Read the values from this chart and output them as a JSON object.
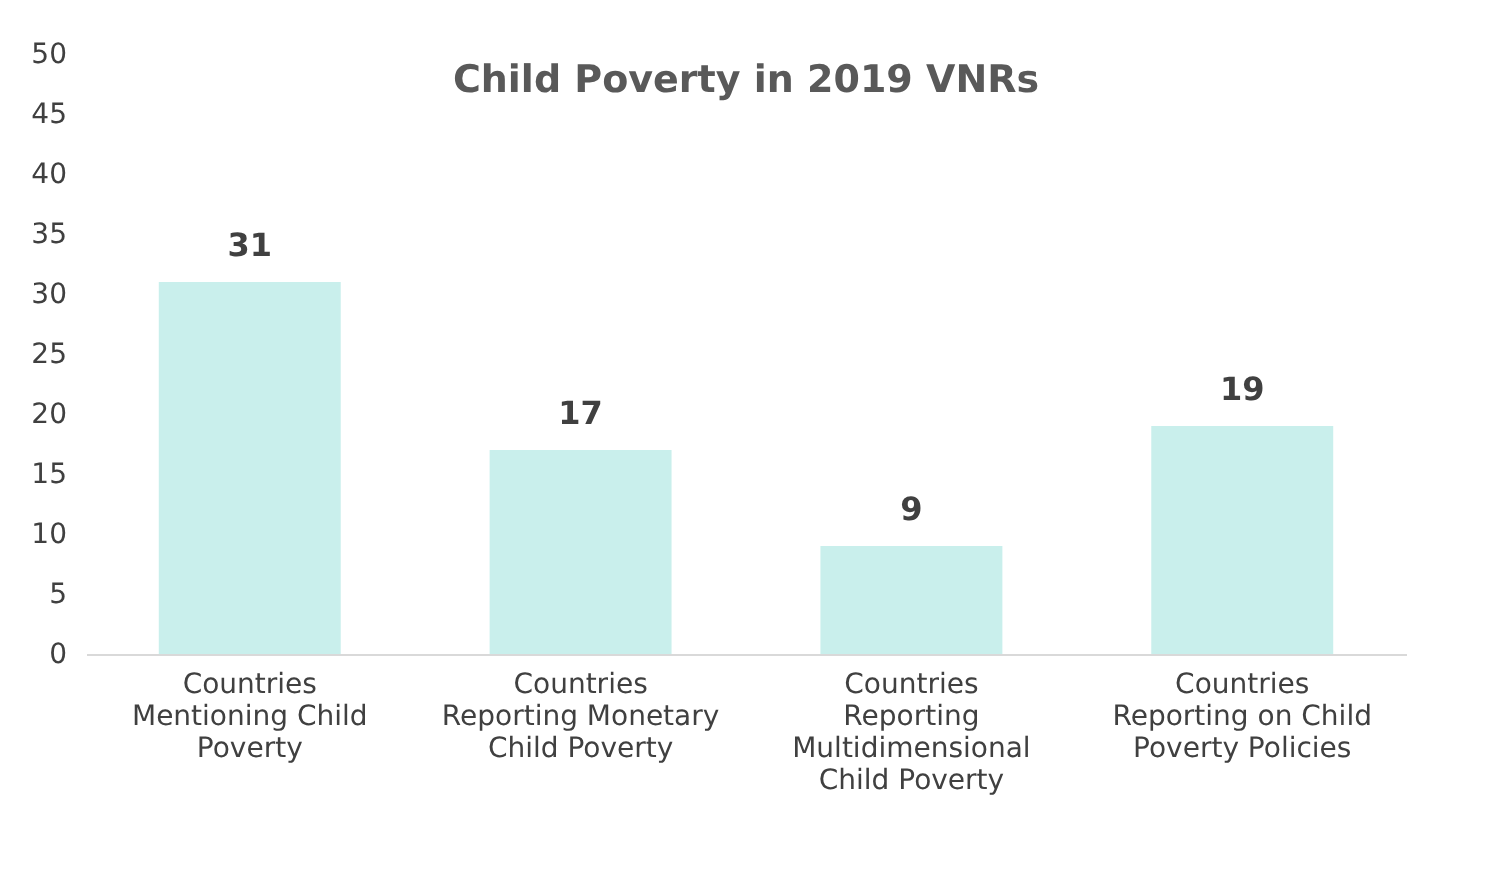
{
  "chart_data": {
    "type": "bar",
    "title": "Child Poverty in 2019 VNRs",
    "categories": [
      "Countries Mentioning Child Poverty",
      "Countries Reporting Monetary Child Poverty",
      "Countries Reporting Multidimensional Child Poverty",
      "Countries Reporting on Child Poverty Policies"
    ],
    "values": [
      31,
      17,
      9,
      19
    ],
    "color": "#c9efec",
    "ylim": [
      0,
      50
    ],
    "yticks": [
      0,
      5,
      10,
      15,
      20,
      25,
      30,
      35,
      40,
      45,
      50
    ],
    "grid": false,
    "data_labels": true
  }
}
